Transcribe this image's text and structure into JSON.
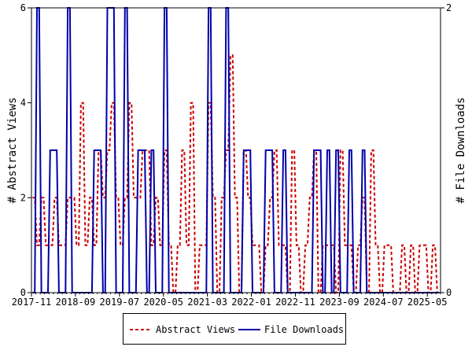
{
  "chart_data": {
    "type": "line",
    "title": "",
    "xlabel": "",
    "ylabel": "# Abstract Views",
    "y2label": "# File Downloads",
    "ylim": [
      0,
      6
    ],
    "y2lim": [
      0,
      2
    ],
    "yticks": [
      "0",
      "2",
      "4",
      "6"
    ],
    "y2ticks": [
      "0",
      "2"
    ],
    "grid": false,
    "legend_position": "bottom",
    "categories": [
      "2017-11",
      "2017-12",
      "2018-01",
      "2018-02",
      "2018-03",
      "2018-04",
      "2018-05",
      "2018-06",
      "2018-07",
      "2018-08",
      "2018-09",
      "2018-10",
      "2018-11",
      "2018-12",
      "2019-01",
      "2019-02",
      "2019-03",
      "2019-04",
      "2019-05",
      "2019-06",
      "2019-07",
      "2019-08",
      "2019-09",
      "2019-10",
      "2019-11",
      "2019-12",
      "2020-01",
      "2020-02",
      "2020-03",
      "2020-04",
      "2020-05",
      "2020-06",
      "2020-07",
      "2020-08",
      "2020-09",
      "2020-10",
      "2020-11",
      "2020-12",
      "2021-01",
      "2021-02",
      "2021-03",
      "2021-04",
      "2021-05",
      "2021-06",
      "2021-07",
      "2021-08",
      "2021-09",
      "2021-10",
      "2021-11",
      "2021-12",
      "2022-01",
      "2022-02",
      "2022-03",
      "2022-04",
      "2022-05",
      "2022-06",
      "2022-07",
      "2022-08",
      "2022-09",
      "2022-10",
      "2022-11",
      "2022-12",
      "2023-01",
      "2023-02",
      "2023-03",
      "2023-04",
      "2023-05",
      "2023-06",
      "2023-07",
      "2023-08",
      "2023-09",
      "2023-10",
      "2023-11",
      "2023-12",
      "2024-01",
      "2024-02",
      "2024-03",
      "2024-04",
      "2024-05",
      "2024-06",
      "2024-07",
      "2024-08",
      "2024-09",
      "2024-10",
      "2024-11",
      "2024-12",
      "2025-01",
      "2025-02",
      "2025-03",
      "2025-04",
      "2025-05",
      "2025-06",
      "2025-07"
    ],
    "xticks": [
      "2017-11",
      "2018-09",
      "2019-07",
      "2020-05",
      "2021-03",
      "2022-01",
      "2022-11",
      "2023-09",
      "2024-07",
      "2025-05"
    ],
    "series": [
      {
        "name": "Abstract Views",
        "axis": "left",
        "color": "#cc0000",
        "style": "dashed",
        "values": [
          2,
          1,
          2,
          1,
          1,
          2,
          1,
          1,
          2,
          2,
          1,
          4,
          1,
          2,
          1,
          3,
          2,
          3,
          4,
          2,
          1,
          2,
          4,
          2,
          2,
          3,
          3,
          1,
          2,
          1,
          3,
          1,
          0,
          1,
          3,
          1,
          4,
          0,
          1,
          1,
          4,
          2,
          0,
          2,
          3,
          5,
          2,
          0,
          3,
          2,
          1,
          1,
          0,
          1,
          2,
          3,
          1,
          1,
          0,
          3,
          1,
          0,
          1,
          2,
          3,
          0,
          1,
          1,
          1,
          0,
          3,
          1,
          1,
          0,
          1,
          2,
          0,
          3,
          1,
          0,
          1,
          1,
          0,
          0,
          1,
          0,
          1,
          0,
          1,
          1,
          0,
          1,
          0
        ]
      },
      {
        "name": "File Downloads",
        "axis": "right",
        "color": "#0000aa",
        "style": "solid",
        "values": [
          0,
          2,
          0,
          0,
          1,
          1,
          0,
          0,
          2,
          0,
          0,
          0,
          0,
          0,
          1,
          1,
          0,
          2,
          2,
          0,
          0,
          2,
          0,
          0,
          1,
          1,
          0,
          1,
          0,
          0,
          2,
          0,
          0,
          0,
          0,
          0,
          0,
          0,
          0,
          0,
          2,
          0,
          0,
          0,
          2,
          0,
          0,
          0,
          1,
          1,
          0,
          0,
          0,
          1,
          1,
          0,
          0,
          1,
          0,
          0,
          0,
          0,
          0,
          0,
          1,
          1,
          0,
          1,
          0,
          1,
          0,
          0,
          1,
          0,
          0,
          1,
          0,
          0,
          0,
          0,
          0,
          0,
          0,
          0,
          0,
          0,
          0,
          0,
          0,
          0,
          0,
          0,
          0
        ]
      }
    ]
  }
}
